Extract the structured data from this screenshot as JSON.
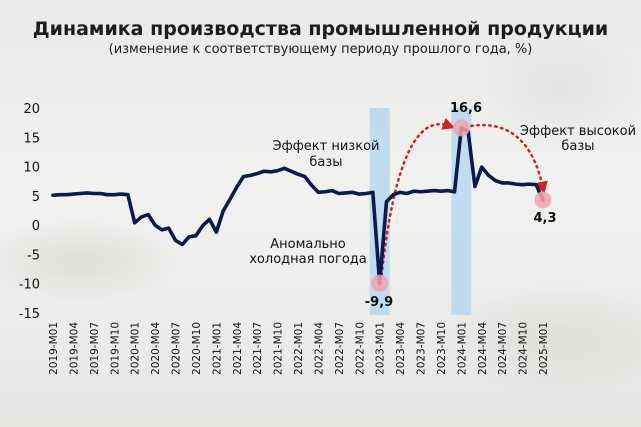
{
  "title": "Динамика производства промышленной продукции",
  "subtitle": "(изменение к соответствующему периоду прошлого года, %)",
  "colors": {
    "line": "#0e1a4f",
    "band": "#a9d4ee",
    "arrow": "#d42020",
    "marker": "#f1a3ab"
  },
  "chart_data": {
    "type": "line",
    "title": "Динамика производства промышленной продукции",
    "subtitle": "(изменение к соответствующему периоду прошлого года, %)",
    "xlabel": "",
    "ylabel": "",
    "ylim": [
      -15,
      20
    ],
    "yticks": [
      -15,
      -10,
      -5,
      0,
      5,
      10,
      15,
      20
    ],
    "grid": false,
    "x_tick_labels": [
      "2019-M01",
      "2019-M04",
      "2019-M07",
      "2019-M10",
      "2020-M01",
      "2020-M04",
      "2020-M07",
      "2020-M10",
      "2021-M01",
      "2021-M04",
      "2021-M07",
      "2021-M10",
      "2022-M01",
      "2022-M04",
      "2022-M07",
      "2022-M10",
      "2023-M01",
      "2023-M04",
      "2023-M07",
      "2023-M10",
      "2024-M01",
      "2024-M04",
      "2024-M07",
      "2024-M10",
      "2025-M01"
    ],
    "series": [
      {
        "name": "",
        "values": [
          5.1,
          5.2,
          5.2,
          5.3,
          5.4,
          5.5,
          5.4,
          5.4,
          5.2,
          5.2,
          5.3,
          5.2,
          0.4,
          1.4,
          1.8,
          0.0,
          -0.8,
          -0.5,
          -2.6,
          -3.3,
          -2.0,
          -1.8,
          -0.1,
          1.0,
          -1.2,
          2.4,
          4.4,
          6.5,
          8.3,
          8.5,
          8.8,
          9.2,
          9.1,
          9.3,
          9.7,
          9.2,
          8.7,
          8.3,
          6.8,
          5.6,
          5.7,
          5.9,
          5.4,
          5.5,
          5.6,
          5.3,
          5.4,
          5.6,
          -9.9,
          4.0,
          5.2,
          5.6,
          5.4,
          5.8,
          5.7,
          5.8,
          5.9,
          5.8,
          5.9,
          5.7,
          16.6,
          16.0,
          6.6,
          9.9,
          8.5,
          7.6,
          7.2,
          7.2,
          7.0,
          6.9,
          7.0,
          6.9,
          4.3
        ]
      }
    ],
    "highlight_bands": [
      "2023-M01",
      "2024-M01"
    ],
    "annotations": {
      "low_base": "Эффект низкой базы",
      "cold": "Аномально холодная погода",
      "high_base": "Эффект высокой базы"
    },
    "data_labels": {
      "min": "-9,9",
      "peak": "16,6",
      "last": "4,3"
    }
  }
}
